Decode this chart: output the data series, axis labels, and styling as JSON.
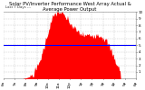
{
  "title": "Solar PV/Inverter Performance West Array Actual & Average Power Output",
  "subtitle": "Last 7 Days ---",
  "bg_color": "#ffffff",
  "plot_bg_color": "#ffffff",
  "grid_color": "#aaaaaa",
  "area_color": "#ff0000",
  "avg_line_color": "#0000ff",
  "avg_value": 0.5,
  "ylim": [
    0,
    1.0
  ],
  "ytick_labels": [
    "1",
    "2",
    "3",
    "4",
    "5",
    "6",
    "7",
    "8",
    "9",
    "10"
  ],
  "title_fontsize": 3.8,
  "tick_fontsize": 3.0,
  "num_points": 200
}
